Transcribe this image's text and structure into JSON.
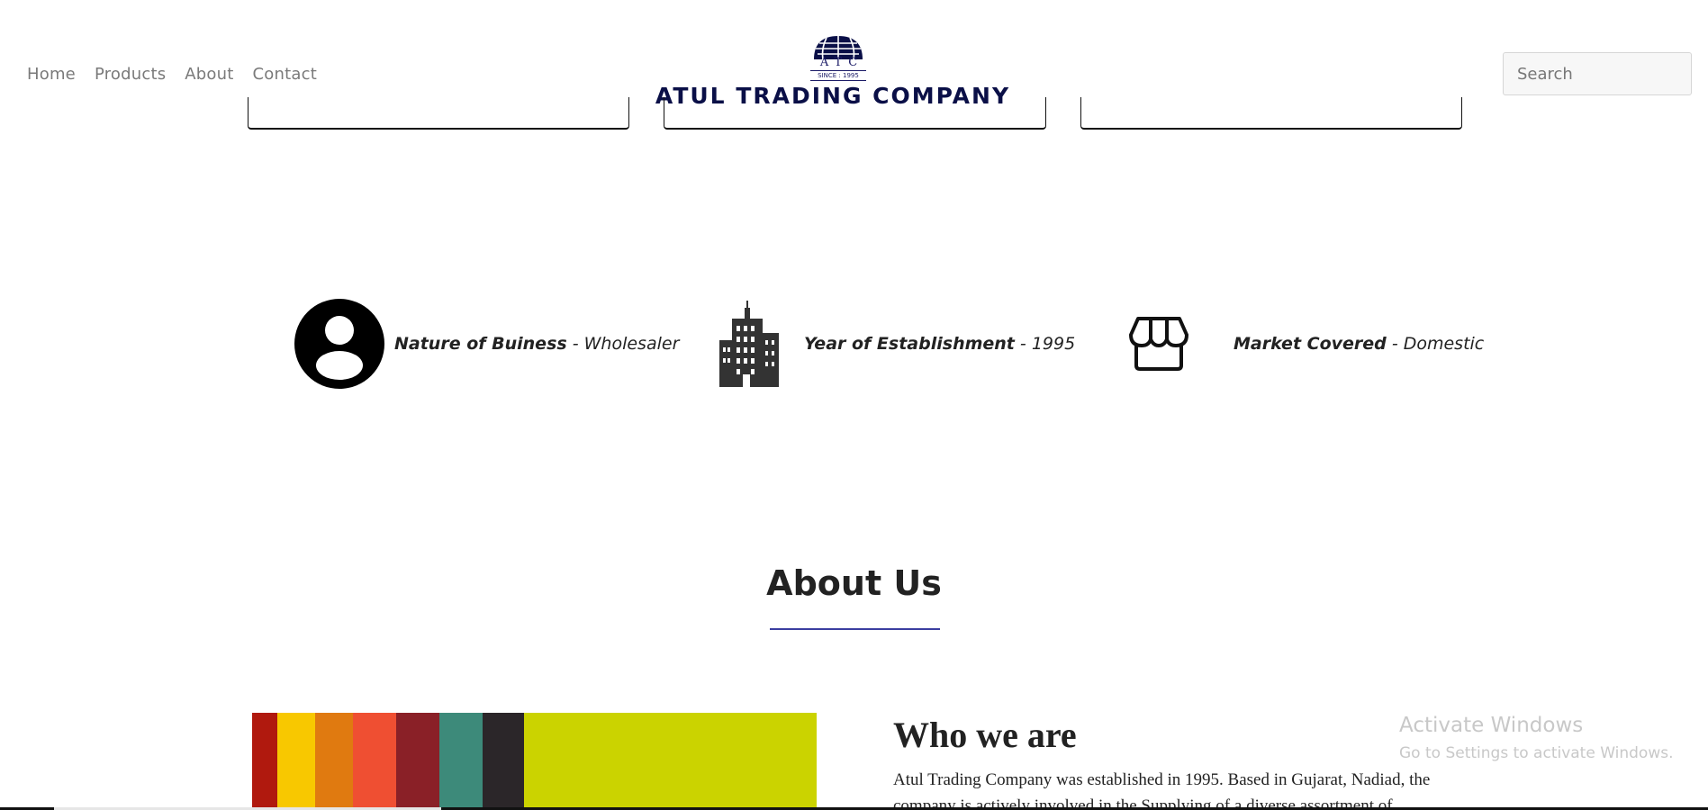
{
  "nav": {
    "items": [
      {
        "label": "Home"
      },
      {
        "label": "Products"
      },
      {
        "label": "About"
      },
      {
        "label": "Contact"
      }
    ]
  },
  "logo": {
    "initials": "ATC",
    "since": "SINCE : 1995",
    "name": "ATUL TRADING COMPANY",
    "color": "#0a0f47"
  },
  "search": {
    "placeholder": "Search",
    "value": ""
  },
  "features": [
    {
      "icon": "person-circle-icon",
      "label": "Nature of Buiness",
      "separator": " - ",
      "value": "Wholesaler"
    },
    {
      "icon": "building-icon",
      "label": "Year of Establishment",
      "separator": " - ",
      "value": "1995"
    },
    {
      "icon": "store-icon",
      "label": "Market Covered",
      "separator": " - ",
      "value": "Domestic"
    }
  ],
  "about": {
    "title": "About Us",
    "accent_color": "#3b3ea0",
    "image": {
      "icon": "colored-paper-stripes-image",
      "colors": [
        "#b0190e",
        "#f8c800",
        "#e07a10",
        "#ef4f32",
        "#8a2027",
        "#3d8a7a",
        "#2b2629",
        "#cbd300"
      ]
    },
    "who_title": "Who we are",
    "who_text": "Atul Trading Company was established in 1995. Based in Gujarat, Nadiad, the company is actively involved in the Supplying of a diverse assortment of"
  },
  "watermark": {
    "line1": "Activate Windows",
    "line2": "Go to Settings to activate Windows."
  }
}
